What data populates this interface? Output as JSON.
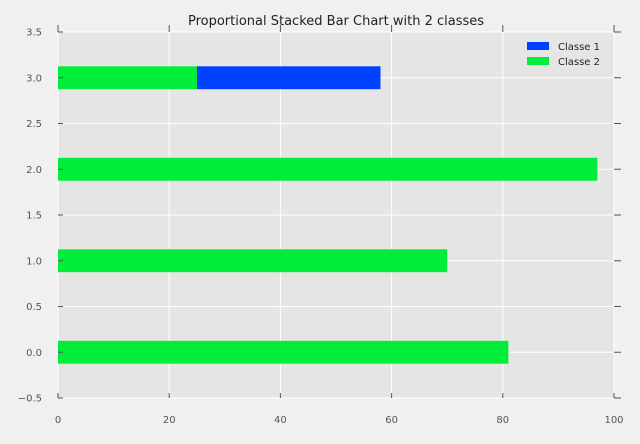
{
  "chart_data": {
    "type": "bar",
    "orientation": "horizontal",
    "stacked": true,
    "title": "Proportional Stacked Bar Chart with 2 classes",
    "xlabel": "",
    "ylabel": "",
    "xlim": [
      0,
      100
    ],
    "ylim": [
      -0.5,
      3.5
    ],
    "xticks": [
      0,
      20,
      40,
      60,
      80,
      100
    ],
    "xtick_labels": [
      "0",
      "20",
      "40",
      "60",
      "80",
      "100"
    ],
    "yticks": [
      -0.5,
      0.0,
      0.5,
      1.0,
      1.5,
      2.0,
      2.5,
      3.0,
      3.5
    ],
    "ytick_labels": [
      "−0.5",
      "0.0",
      "0.5",
      "1.0",
      "1.5",
      "2.0",
      "2.5",
      "3.0",
      "3.5"
    ],
    "bar_positions": [
      0,
      1,
      2,
      3
    ],
    "bar_height": 0.25,
    "grid": true,
    "legend_position": "top-right",
    "series": [
      {
        "name": "Classe 2",
        "color": "#00ee3a",
        "values": [
          81,
          70,
          97,
          25
        ]
      },
      {
        "name": "Classe 1",
        "color": "#0040ff",
        "values": [
          0,
          0,
          0,
          33
        ]
      }
    ],
    "legend": [
      {
        "name": "Classe 1",
        "color": "#0040ff"
      },
      {
        "name": "Classe 2",
        "color": "#00ee3a"
      }
    ],
    "colors": {
      "background": "#f0f0f0",
      "plot_background": "#e5e5e5",
      "grid": "#ffffff",
      "text": "#222222",
      "tick": "#555555"
    }
  }
}
